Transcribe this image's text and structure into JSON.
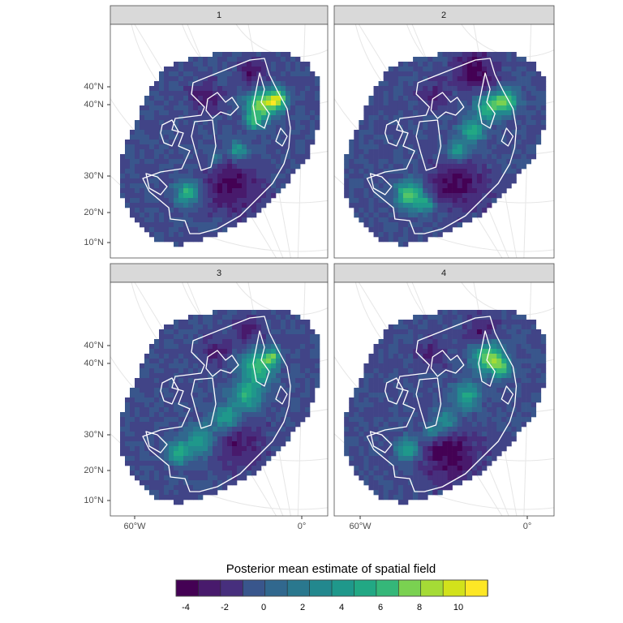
{
  "facets": [
    {
      "label": "1",
      "variant": 1
    },
    {
      "label": "2",
      "variant": 2
    },
    {
      "label": "3",
      "variant": 3
    },
    {
      "label": "4",
      "variant": 4
    }
  ],
  "lat_labels": [
    "40°N",
    "40°N",
    "30°N",
    "20°N",
    "10°N"
  ],
  "lon_labels": [
    "60°W",
    "0°"
  ],
  "legend": {
    "title": "Posterior mean estimate of spatial field",
    "ticks": [
      {
        "value": -4,
        "label": "-4"
      },
      {
        "value": -2,
        "label": "-2"
      },
      {
        "value": 0,
        "label": "0"
      },
      {
        "value": 2,
        "label": "2"
      },
      {
        "value": 4,
        "label": "4"
      },
      {
        "value": 6,
        "label": "6"
      },
      {
        "value": 8,
        "label": "8"
      },
      {
        "value": 10,
        "label": "10"
      }
    ],
    "range": [
      -4.5,
      11.5
    ],
    "bins": 14
  },
  "colors": {
    "palette": [
      "#440154",
      "#481a6c",
      "#472f7d",
      "#414487",
      "#39568c",
      "#31688e",
      "#2a788e",
      "#23888e",
      "#1f988b",
      "#22a884",
      "#35b779",
      "#54c568",
      "#7ad151",
      "#a5db36",
      "#d2e21b",
      "#fde725"
    ],
    "panel_border": "#4d4d4d",
    "strip_fill": "#d9d9d9",
    "graticule": "#e6e6e6",
    "coast": "#ffffff"
  }
}
